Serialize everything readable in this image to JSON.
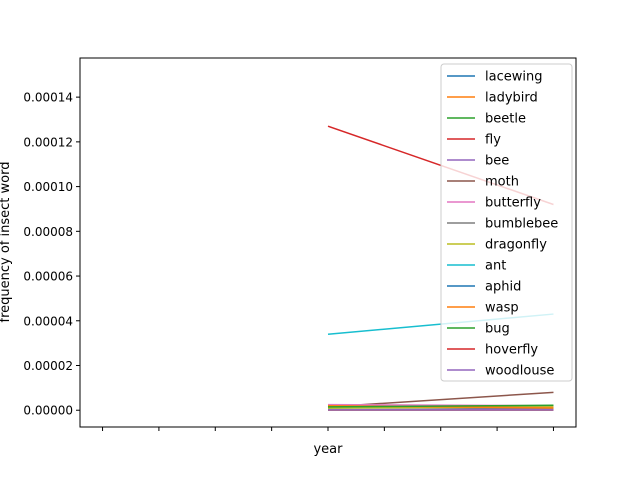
{
  "chart_data": {
    "type": "line",
    "title": "",
    "xlabel": "year",
    "ylabel": "frequency of insect word",
    "x": [
      0,
      1,
      2,
      3,
      4,
      5,
      6,
      7,
      8
    ],
    "xlim": [
      -0.4,
      8.4
    ],
    "ylim": [
      -7.5e-06,
      0.0001575
    ],
    "yticks": [
      0,
      2e-05,
      4e-05,
      6e-05,
      8e-05,
      0.0001,
      0.00012,
      0.00014
    ],
    "ytick_labels": [
      "0.00000",
      "0.00002",
      "0.00004",
      "0.00006",
      "0.00008",
      "0.00010",
      "0.00012",
      "0.00014"
    ],
    "grid": false,
    "legend_position": "top-right",
    "series": [
      {
        "name": "lacewing",
        "color": "#1f77b4",
        "values": [
          null,
          null,
          null,
          null,
          1e-07,
          null,
          null,
          null,
          1e-07
        ]
      },
      {
        "name": "ladybird",
        "color": "#ff7f0e",
        "values": [
          null,
          null,
          null,
          null,
          1.5e-06,
          null,
          null,
          null,
          1e-06
        ]
      },
      {
        "name": "beetle",
        "color": "#2ca02c",
        "values": [
          null,
          null,
          null,
          null,
          1e-06,
          null,
          null,
          null,
          2e-06
        ]
      },
      {
        "name": "fly",
        "color": "#d62728",
        "values": [
          null,
          null,
          null,
          null,
          0.000127,
          null,
          null,
          null,
          9.2e-05
        ]
      },
      {
        "name": "bee",
        "color": "#9467bd",
        "values": [
          null,
          null,
          null,
          null,
          1.5e-06,
          null,
          null,
          null,
          5e-07
        ]
      },
      {
        "name": "moth",
        "color": "#8c564b",
        "values": [
          null,
          null,
          null,
          null,
          1.5e-06,
          null,
          null,
          null,
          8e-06
        ]
      },
      {
        "name": "butterfly",
        "color": "#e377c2",
        "values": [
          null,
          null,
          null,
          null,
          2.5e-06,
          null,
          null,
          null,
          2e-06
        ]
      },
      {
        "name": "bumblebee",
        "color": "#7f7f7f",
        "values": [
          null,
          null,
          null,
          null,
          1e-06,
          null,
          null,
          null,
          1e-06
        ]
      },
      {
        "name": "dragonfly",
        "color": "#bcbd22",
        "values": [
          null,
          null,
          null,
          null,
          1e-06,
          null,
          null,
          null,
          1.5e-06
        ]
      },
      {
        "name": "ant",
        "color": "#17becf",
        "values": [
          null,
          null,
          null,
          null,
          3.4e-05,
          null,
          null,
          null,
          4.3e-05
        ]
      },
      {
        "name": "aphid",
        "color": "#1f77b4",
        "values": [
          null,
          null,
          null,
          null,
          2e-07,
          null,
          null,
          null,
          2e-07
        ]
      },
      {
        "name": "wasp",
        "color": "#ff7f0e",
        "values": [
          null,
          null,
          null,
          null,
          2e-06,
          null,
          null,
          null,
          1e-06
        ]
      },
      {
        "name": "bug",
        "color": "#2ca02c",
        "values": [
          null,
          null,
          null,
          null,
          1.5e-06,
          null,
          null,
          null,
          2.2e-06
        ]
      },
      {
        "name": "hoverfly",
        "color": "#d62728",
        "values": [
          null,
          null,
          null,
          null,
          1e-07,
          null,
          null,
          null,
          1e-07
        ]
      },
      {
        "name": "woodlouse",
        "color": "#9467bd",
        "values": [
          null,
          null,
          null,
          null,
          2e-07,
          null,
          null,
          null,
          2e-07
        ]
      }
    ]
  }
}
